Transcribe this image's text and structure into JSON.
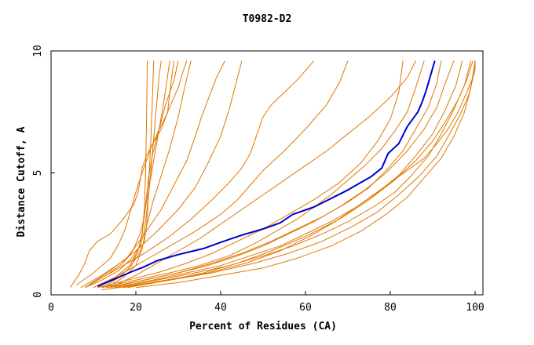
{
  "chart_data": {
    "type": "line",
    "title": "T0982-D2",
    "xlabel": "Percent of Residues (CA)",
    "ylabel": "Distance Cutoff, A",
    "xlim": [
      0,
      100
    ],
    "ylim": [
      0,
      10
    ],
    "xticks": [
      "0",
      "20",
      "40",
      "60",
      "80",
      "100"
    ],
    "yticks": [
      "0",
      "5",
      "10"
    ],
    "grid": false,
    "colors": {
      "highlight": "#0000cc",
      "others": "#e07800"
    },
    "highlight_series": {
      "name": "",
      "x": [
        11,
        15,
        19,
        22,
        25,
        30,
        36,
        40,
        45,
        50,
        54,
        57,
        62,
        66,
        70,
        73,
        75.5,
        78,
        79,
        79.5,
        82,
        84,
        86.5,
        87.5,
        88.5,
        89.5,
        90.5
      ],
      "y": [
        0.35,
        0.65,
        0.95,
        1.15,
        1.4,
        1.65,
        1.9,
        2.15,
        2.45,
        2.7,
        2.95,
        3.3,
        3.6,
        3.95,
        4.3,
        4.6,
        4.85,
        5.2,
        5.6,
        5.8,
        6.2,
        6.9,
        7.5,
        7.9,
        8.4,
        9.0,
        9.6
      ]
    },
    "series": [
      {
        "x": [
          4.5,
          6.5,
          8,
          9,
          11,
          14,
          17,
          19.5,
          20.5,
          21,
          21.5,
          22.5,
          24,
          26,
          27.5,
          28,
          28.5,
          29
        ],
        "y": [
          0.3,
          0.8,
          1.3,
          1.8,
          2.2,
          2.5,
          3.1,
          3.7,
          4.2,
          4.7,
          5.2,
          5.7,
          6.2,
          6.8,
          7.5,
          8.3,
          9.0,
          9.6
        ]
      },
      {
        "x": [
          6,
          10,
          14,
          16,
          17.5,
          18.5,
          19.5,
          20.5,
          21.5,
          22.5,
          23.5,
          25,
          27,
          28.5,
          30,
          31,
          32
        ],
        "y": [
          0.4,
          0.9,
          1.5,
          2.1,
          2.7,
          3.3,
          3.9,
          4.5,
          5.0,
          5.5,
          6.0,
          6.6,
          7.3,
          7.9,
          8.5,
          9.1,
          9.6
        ]
      },
      {
        "x": [
          8,
          12,
          16,
          19,
          21,
          22,
          22.5,
          23,
          23.5,
          24,
          24.5,
          25,
          25.5,
          26
        ],
        "y": [
          0.3,
          0.6,
          1.0,
          1.5,
          2.0,
          2.6,
          3.3,
          4.1,
          5.0,
          6.0,
          7.0,
          8.0,
          9.0,
          9.6
        ]
      },
      {
        "x": [
          10,
          14,
          18,
          20.5,
          22,
          22.5,
          22.8,
          23,
          23.2,
          23.5,
          23.8,
          24,
          24.2
        ],
        "y": [
          0.3,
          0.6,
          1.0,
          1.6,
          2.2,
          2.8,
          3.5,
          4.3,
          5.2,
          6.2,
          7.5,
          8.5,
          9.6
        ]
      },
      {
        "x": [
          11,
          15,
          18.5,
          20.5,
          21.5,
          22,
          22.3,
          22.5,
          22.7
        ],
        "y": [
          0.3,
          0.7,
          1.2,
          1.8,
          2.5,
          3.5,
          5.0,
          7.0,
          9.6
        ]
      },
      {
        "x": [
          12,
          16,
          19,
          20.5,
          21.5,
          22,
          23,
          24,
          25,
          26.5,
          28
        ],
        "y": [
          0.3,
          0.7,
          1.2,
          1.8,
          2.5,
          3.3,
          4.3,
          5.3,
          6.3,
          7.8,
          9.6
        ]
      },
      {
        "x": [
          9,
          13,
          17,
          19.5,
          21,
          22,
          22.5,
          23,
          24,
          25.5,
          27,
          29,
          30
        ],
        "y": [
          0.4,
          0.8,
          1.3,
          1.9,
          2.5,
          3.2,
          4.0,
          4.8,
          5.8,
          6.8,
          7.8,
          8.8,
          9.6
        ]
      },
      {
        "x": [
          13,
          17,
          20,
          21.5,
          22.5,
          24,
          26,
          28,
          30,
          31.5,
          33
        ],
        "y": [
          0.3,
          0.7,
          1.2,
          1.9,
          2.8,
          3.8,
          4.9,
          6.0,
          7.3,
          8.5,
          9.6
        ]
      },
      {
        "x": [
          7,
          12,
          18,
          22,
          26,
          29,
          32,
          34,
          35.5,
          37,
          39,
          41
        ],
        "y": [
          0.3,
          0.8,
          1.5,
          2.5,
          3.5,
          4.5,
          5.5,
          6.5,
          7.3,
          8.0,
          8.9,
          9.6
        ]
      },
      {
        "x": [
          8,
          14,
          20,
          25,
          30,
          34,
          37,
          40,
          42,
          43.5,
          45
        ],
        "y": [
          0.3,
          1.0,
          1.8,
          2.6,
          3.5,
          4.4,
          5.4,
          6.5,
          7.6,
          8.6,
          9.6
        ]
      },
      {
        "x": [
          9,
          15,
          22,
          28,
          33,
          38,
          42,
          45,
          47,
          48,
          49,
          50,
          52,
          55,
          58,
          60,
          62
        ],
        "y": [
          0.4,
          1.0,
          1.7,
          2.4,
          3.1,
          3.9,
          4.6,
          5.2,
          5.8,
          6.3,
          6.8,
          7.3,
          7.8,
          8.3,
          8.8,
          9.2,
          9.6
        ]
      },
      {
        "x": [
          10,
          16,
          22,
          28,
          34,
          40,
          44,
          47,
          50,
          55,
          60,
          65,
          68,
          70
        ],
        "y": [
          0.3,
          0.8,
          1.4,
          2.0,
          2.6,
          3.3,
          3.9,
          4.5,
          5.1,
          5.9,
          6.8,
          7.8,
          8.7,
          9.6
        ]
      },
      {
        "x": [
          14,
          20,
          25,
          30,
          35,
          40,
          45,
          50,
          55,
          60,
          65,
          70,
          75,
          80,
          84,
          86
        ],
        "y": [
          0.3,
          0.8,
          1.3,
          1.8,
          2.3,
          2.9,
          3.5,
          4.1,
          4.7,
          5.3,
          5.9,
          6.6,
          7.3,
          8.1,
          8.9,
          9.6
        ]
      },
      {
        "x": [
          11,
          18,
          25,
          32,
          38,
          44,
          50,
          56,
          62,
          68,
          73,
          77,
          80,
          82,
          83
        ],
        "y": [
          0.3,
          0.6,
          0.9,
          1.3,
          1.7,
          2.2,
          2.7,
          3.3,
          3.9,
          4.6,
          5.4,
          6.3,
          7.2,
          8.3,
          9.6
        ]
      },
      {
        "x": [
          12,
          20,
          28,
          35,
          42,
          48,
          53,
          58,
          62,
          66,
          70,
          74,
          78,
          81,
          84,
          86,
          88
        ],
        "y": [
          0.3,
          0.6,
          0.9,
          1.2,
          1.6,
          2.1,
          2.6,
          3.1,
          3.6,
          4.1,
          4.7,
          5.3,
          6.0,
          6.7,
          7.5,
          8.5,
          9.6
        ]
      },
      {
        "x": [
          13,
          22,
          30,
          38,
          45,
          52,
          58,
          64,
          70,
          75,
          79,
          83,
          86,
          89,
          91,
          92
        ],
        "y": [
          0.3,
          0.6,
          0.9,
          1.3,
          1.7,
          2.2,
          2.7,
          3.2,
          3.8,
          4.4,
          5.1,
          5.9,
          6.8,
          7.7,
          8.7,
          9.6
        ]
      },
      {
        "x": [
          14,
          22,
          30,
          37,
          44,
          50,
          56,
          62,
          68,
          74,
          79,
          84,
          88,
          91,
          93,
          95
        ],
        "y": [
          0.3,
          0.6,
          0.9,
          1.2,
          1.6,
          2.0,
          2.5,
          3.0,
          3.6,
          4.3,
          5.0,
          5.9,
          6.8,
          7.7,
          8.7,
          9.6
        ]
      },
      {
        "x": [
          15,
          24,
          32,
          40,
          47,
          54,
          60,
          66,
          72,
          77,
          82,
          86,
          90,
          93,
          95.5,
          97
        ],
        "y": [
          0.3,
          0.6,
          0.9,
          1.2,
          1.6,
          2.0,
          2.5,
          3.0,
          3.6,
          4.2,
          4.9,
          5.7,
          6.6,
          7.6,
          8.6,
          9.6
        ]
      },
      {
        "x": [
          16,
          25,
          34,
          42,
          50,
          57,
          64,
          70,
          76,
          81,
          85,
          89,
          92,
          95,
          97.5,
          99
        ],
        "y": [
          0.3,
          0.6,
          0.9,
          1.2,
          1.6,
          2.0,
          2.5,
          3.0,
          3.6,
          4.2,
          4.9,
          5.7,
          6.6,
          7.6,
          8.6,
          9.6
        ]
      },
      {
        "x": [
          12,
          20,
          28,
          36,
          44,
          52,
          60,
          68,
          75,
          81,
          86,
          90,
          93,
          96,
          98,
          99.5
        ],
        "y": [
          0.2,
          0.4,
          0.6,
          0.9,
          1.3,
          1.8,
          2.4,
          3.1,
          3.9,
          4.7,
          5.5,
          6.3,
          7.1,
          8.0,
          8.8,
          9.6
        ]
      },
      {
        "x": [
          18,
          28,
          38,
          48,
          56,
          64,
          71,
          77,
          82,
          87,
          91,
          94,
          96.5,
          98.5,
          99.5,
          100
        ],
        "y": [
          0.3,
          0.6,
          0.9,
          1.3,
          1.7,
          2.2,
          2.8,
          3.4,
          4.1,
          4.9,
          5.7,
          6.6,
          7.4,
          8.2,
          8.9,
          9.6
        ]
      },
      {
        "x": [
          20,
          30,
          40,
          50,
          58,
          66,
          73,
          79,
          84,
          88,
          92,
          95,
          97.5,
          99,
          100
        ],
        "y": [
          0.3,
          0.5,
          0.8,
          1.1,
          1.5,
          2.0,
          2.6,
          3.3,
          4.0,
          4.8,
          5.6,
          6.5,
          7.5,
          8.5,
          9.6
        ]
      },
      {
        "x": [
          17,
          27,
          37,
          46,
          54,
          61,
          67,
          72,
          76,
          80,
          84,
          88,
          91,
          94,
          96,
          97.5,
          99,
          100,
          100
        ],
        "y": [
          0.3,
          0.6,
          0.9,
          1.3,
          1.8,
          2.4,
          3.0,
          3.6,
          4.1,
          4.6,
          5.1,
          5.6,
          6.2,
          6.9,
          7.5,
          8.1,
          8.7,
          9.2,
          9.6
        ]
      }
    ]
  }
}
